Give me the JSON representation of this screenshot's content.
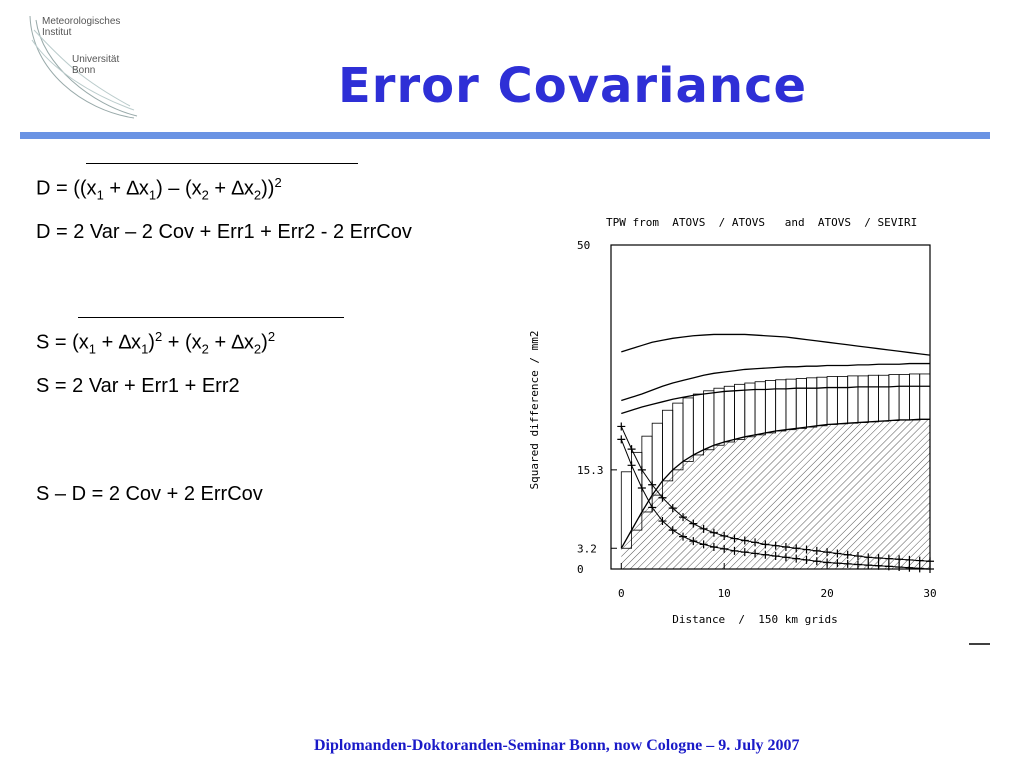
{
  "logo": {
    "line1": "Meteorologisches",
    "line2": "Institut",
    "line3": "Universität",
    "line4": "Bonn"
  },
  "title": "Error Covariance",
  "formulas": {
    "d_def": {
      "left": "D = ((x",
      "s1": "1",
      "m1": " + ∆x",
      "s2": "1",
      "m2": ") – (x",
      "s3": "2",
      "m3": " + ∆x",
      "s4": "2",
      "m4": "))",
      "sup": "2"
    },
    "d_expand": "D = 2 Var – 2 Cov + Err1 + Err2 - 2 ErrCov",
    "s_def": {
      "left": "S = (x",
      "s1": "1",
      "m1": " + ∆x",
      "s2": "1",
      "m2": ")",
      "p1": "2",
      "m3": " + (x",
      "s3": "2",
      "m4": " + ∆x",
      "s4": "2",
      "m5": ")",
      "p2": "2"
    },
    "s_expand": "S = 2 Var + Err1 + Err2",
    "diff": "S – D = 2 Cov + 2 ErrCov"
  },
  "chart_data": {
    "type": "line",
    "title": "TPW from  ATOVS  / ATOVS   and  ATOVS  / SEVIRI",
    "xlabel": "Distance  /  150 km grids",
    "ylabel": "Squared difference / mm2",
    "xlim": [
      -1,
      30
    ],
    "ylim": [
      0,
      50
    ],
    "x_ticks": [
      "0",
      "10",
      "20",
      "30"
    ],
    "y_ticks": [
      "0",
      "3.2",
      "15.3",
      "50"
    ],
    "x": [
      0,
      1,
      2,
      3,
      4,
      5,
      6,
      7,
      8,
      9,
      10,
      11,
      12,
      13,
      14,
      15,
      16,
      17,
      18,
      19,
      20,
      21,
      22,
      23,
      24,
      25,
      26,
      27,
      28,
      29,
      30
    ],
    "series": [
      {
        "values": [
          33.5,
          34.0,
          34.5,
          35.0,
          35.3,
          35.6,
          35.8,
          36.0,
          36.1,
          36.2,
          36.2,
          36.2,
          36.2,
          36.1,
          36.0,
          35.9,
          35.8,
          35.6,
          35.4,
          35.2,
          35.0,
          34.8,
          34.6,
          34.4,
          34.2,
          34.0,
          33.8,
          33.6,
          33.4,
          33.2,
          33.0
        ]
      },
      {
        "values": [
          26.0,
          26.5,
          27.0,
          27.6,
          28.2,
          28.7,
          29.1,
          29.5,
          29.9,
          30.2,
          30.4,
          30.6,
          30.8,
          30.9,
          31.0,
          31.1,
          31.2,
          31.2,
          31.3,
          31.3,
          31.4,
          31.4,
          31.4,
          31.5,
          31.5,
          31.6,
          31.6,
          31.6,
          31.7,
          31.7,
          31.7
        ]
      },
      {
        "values": [
          24.0,
          24.5,
          25.0,
          25.4,
          25.8,
          26.2,
          26.5,
          26.8,
          27.0,
          27.2,
          27.4,
          27.5,
          27.6,
          27.7,
          27.7,
          27.8,
          27.8,
          27.9,
          27.9,
          27.9,
          28.0,
          28.0,
          28.0,
          28.1,
          28.1,
          28.1,
          28.1,
          28.2,
          28.2,
          28.2,
          28.2
        ]
      },
      {
        "values": [
          3.2,
          6.0,
          8.8,
          11.4,
          13.6,
          15.3,
          16.6,
          17.6,
          18.4,
          19.1,
          19.6,
          20.0,
          20.4,
          20.7,
          21.0,
          21.3,
          21.5,
          21.7,
          21.9,
          22.1,
          22.3,
          22.4,
          22.5,
          22.6,
          22.7,
          22.8,
          22.9,
          23.0,
          23.0,
          23.1,
          23.1
        ]
      },
      {
        "values": [
          22.0,
          18.5,
          15.3,
          13.0,
          11.0,
          9.4,
          8.0,
          7.0,
          6.2,
          5.6,
          5.1,
          4.7,
          4.4,
          4.1,
          3.8,
          3.6,
          3.4,
          3.2,
          3.0,
          2.8,
          2.6,
          2.4,
          2.2,
          2.0,
          1.8,
          1.7,
          1.6,
          1.5,
          1.4,
          1.3,
          1.2
        ]
      },
      {
        "values": [
          20.0,
          16.0,
          12.5,
          9.5,
          7.4,
          6.0,
          5.0,
          4.3,
          3.8,
          3.4,
          3.1,
          2.8,
          2.6,
          2.4,
          2.2,
          2.0,
          1.8,
          1.6,
          1.4,
          1.2,
          1.0,
          0.9,
          0.8,
          0.7,
          0.6,
          0.5,
          0.4,
          0.3,
          0.2,
          0.1,
          0.0
        ]
      }
    ],
    "box_x": [
      0,
      1,
      2,
      3,
      4,
      5,
      6,
      7,
      8,
      9,
      10,
      11,
      12,
      13,
      14,
      15,
      16,
      17,
      18,
      19,
      20,
      21,
      22,
      23,
      24,
      25,
      26,
      27,
      28,
      29
    ],
    "box_bottom": [
      3.2,
      6.0,
      8.8,
      11.4,
      13.6,
      15.3,
      16.6,
      17.6,
      18.4,
      19.1,
      19.6,
      20.0,
      20.4,
      20.7,
      21.0,
      21.3,
      21.5,
      21.7,
      21.9,
      22.1,
      22.3,
      22.4,
      22.5,
      22.6,
      22.7,
      22.8,
      22.9,
      23.0,
      23.0,
      23.1
    ],
    "box_top": [
      15.0,
      18.0,
      20.5,
      22.5,
      24.5,
      25.6,
      26.4,
      27.0,
      27.5,
      27.9,
      28.2,
      28.5,
      28.7,
      28.9,
      29.1,
      29.2,
      29.3,
      29.4,
      29.5,
      29.6,
      29.7,
      29.7,
      29.8,
      29.8,
      29.9,
      29.9,
      30.0,
      30.0,
      30.1,
      30.1
    ],
    "grid": false,
    "legend": "none"
  },
  "footer": "Diplomanden-Doktoranden-Seminar Bonn, now Cologne – 9. July 2007"
}
